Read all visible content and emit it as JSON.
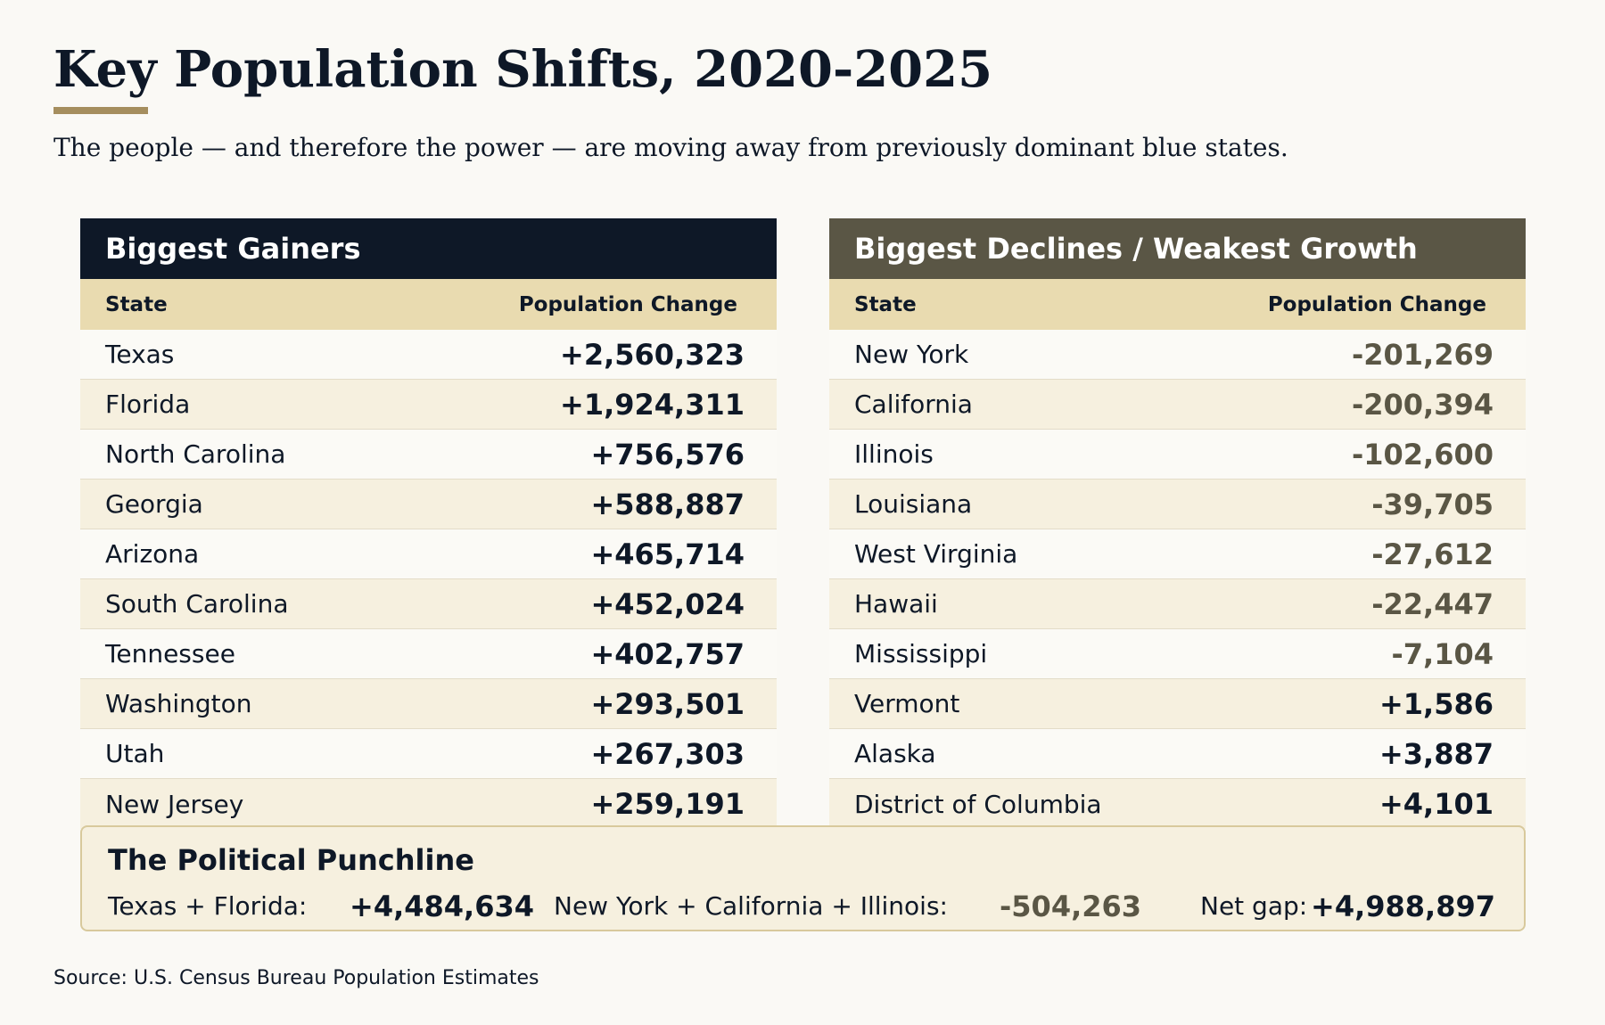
{
  "title": "Key Population Shifts, 2020-2025",
  "subtitle": "The people — and therefore the power — are moving away from previously dominant blue states.",
  "colors": {
    "navy": "#0e1827",
    "olive": "#5a5645",
    "gold_rule": "#a58e5e",
    "column_header_bg": "#e9dbb0",
    "row_stripe": "#f6f0df",
    "background": "#faf9f5"
  },
  "chart_data": [
    {
      "type": "table",
      "title": "Biggest Gainers",
      "columns": [
        "State",
        "Population Change"
      ],
      "rows": [
        {
          "state": "Texas",
          "change": "+2,560,323"
        },
        {
          "state": "Florida",
          "change": "+1,924,311"
        },
        {
          "state": "North Carolina",
          "change": "+756,576"
        },
        {
          "state": "Georgia",
          "change": "+588,887"
        },
        {
          "state": "Arizona",
          "change": "+465,714"
        },
        {
          "state": "South Carolina",
          "change": "+452,024"
        },
        {
          "state": "Tennessee",
          "change": "+402,757"
        },
        {
          "state": "Washington",
          "change": "+293,501"
        },
        {
          "state": "Utah",
          "change": "+267,303"
        },
        {
          "state": "New Jersey",
          "change": "+259,191"
        }
      ]
    },
    {
      "type": "table",
      "title": "Biggest Declines / Weakest Growth",
      "columns": [
        "State",
        "Population Change"
      ],
      "rows": [
        {
          "state": "New York",
          "change": "-201,269"
        },
        {
          "state": "California",
          "change": "-200,394"
        },
        {
          "state": "Illinois",
          "change": "-102,600"
        },
        {
          "state": "Louisiana",
          "change": "-39,705"
        },
        {
          "state": "West Virginia",
          "change": "-27,612"
        },
        {
          "state": "Hawaii",
          "change": "-22,447"
        },
        {
          "state": "Mississippi",
          "change": "-7,104"
        },
        {
          "state": "Vermont",
          "change": "+1,586"
        },
        {
          "state": "Alaska",
          "change": "+3,887"
        },
        {
          "state": "District of Columbia",
          "change": "+4,101"
        }
      ]
    }
  ],
  "punchline": {
    "title": "The Political Punchline",
    "texas_florida_label": "Texas + Florida:",
    "texas_florida_value": "+4,484,634",
    "ny_ca_il_label": "New York + California + Illinois:",
    "ny_ca_il_value": "-504,263",
    "net_gap_label": "Net gap:",
    "net_gap_value": "+4,988,897"
  },
  "source": "Source: U.S. Census Bureau Population Estimates"
}
